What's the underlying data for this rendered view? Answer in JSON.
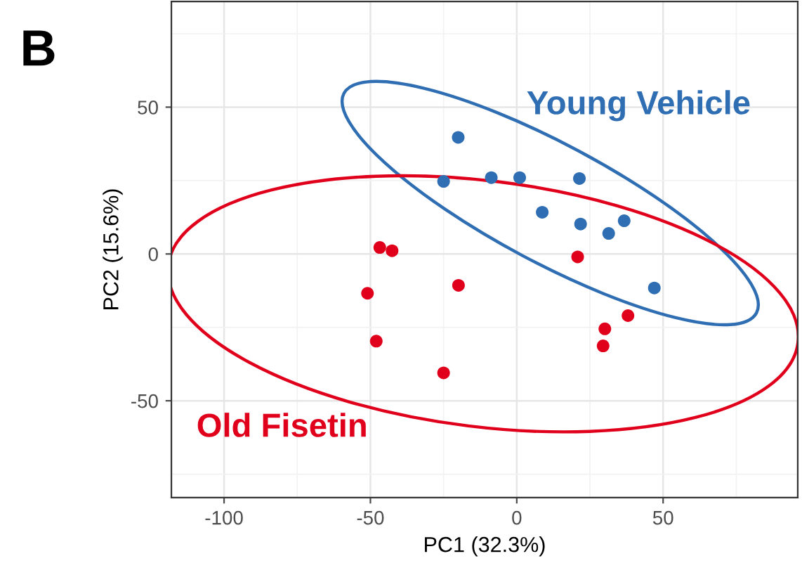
{
  "chart_data": {
    "type": "scatter",
    "xlabel": "PC1 (32.3%)",
    "ylabel": "PC2 (15.6%)",
    "annotations": [
      "B"
    ],
    "xlim": [
      -118,
      96
    ],
    "ylim": [
      -83,
      86
    ],
    "xticks": [
      -100,
      -50,
      0,
      50
    ],
    "yticks": [
      -50,
      0,
      50
    ],
    "grid": true,
    "legend": false,
    "marker": "circle",
    "series": [
      {
        "name": "Young Vehicle",
        "color": "#2f6eb2",
        "x": [
          -20,
          -25,
          -8.7,
          1,
          21.4,
          8.7,
          21.8,
          36.7,
          31.4,
          47
        ],
        "values": [
          39.7,
          24.7,
          26,
          26,
          25.7,
          14.2,
          10.2,
          11.3,
          7,
          -11.6
        ]
      },
      {
        "name": "Old Fisetin",
        "color": "#e0001b",
        "x": [
          -46.8,
          -42.6,
          20.8,
          -51,
          -19.9,
          -48,
          -25,
          30.1,
          29.5,
          38
        ],
        "values": [
          2.2,
          1.1,
          -1,
          -13.4,
          -10.7,
          -29.7,
          -40.5,
          -25.5,
          -31.3,
          -21
        ]
      }
    ]
  }
}
